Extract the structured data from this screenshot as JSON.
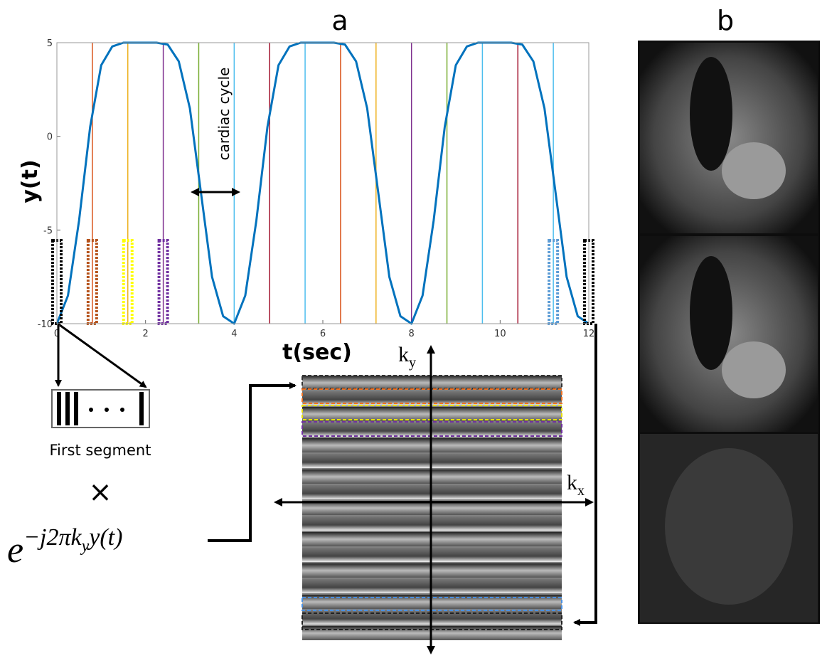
{
  "chart_data": {
    "type": "line",
    "title": "a",
    "xlabel": "t(sec)",
    "ylabel": "y(t)",
    "annotation": "cardiac cycle",
    "x": [
      0,
      0.25,
      0.5,
      0.75,
      1,
      1.25,
      1.5,
      1.75,
      2,
      2.25,
      2.5,
      2.75,
      3,
      3.25,
      3.5,
      3.75,
      4,
      4.25,
      4.5,
      4.75,
      5,
      5.25,
      5.5,
      5.75,
      6,
      6.25,
      6.5,
      6.75,
      7,
      7.25,
      7.5,
      7.75,
      8,
      8.25,
      8.5,
      8.75,
      9,
      9.25,
      9.5,
      9.75,
      10,
      10.25,
      10.5,
      10.75,
      11,
      11.25,
      11.5,
      11.75,
      12
    ],
    "series": [
      {
        "color": "#0072bd",
        "values": [
          -10,
          -8.5,
          -4.5,
          0.5,
          3.8,
          4.8,
          5,
          5,
          5,
          5,
          4.9,
          4,
          1.5,
          -3,
          -7.5,
          -9.6,
          -10,
          -8.5,
          -4.5,
          0.5,
          3.8,
          4.8,
          5,
          5,
          5,
          5,
          4.9,
          4,
          1.5,
          -3,
          -7.5,
          -9.6,
          -10,
          -8.5,
          -4.5,
          0.5,
          3.8,
          4.8,
          5,
          5,
          5,
          5,
          4.9,
          4,
          1.5,
          -3,
          -7.5,
          -9.6,
          -10
        ]
      }
    ],
    "vertical_lines": [
      {
        "x": 0.8,
        "color": "#d95319"
      },
      {
        "x": 1.6,
        "color": "#edb120"
      },
      {
        "x": 2.4,
        "color": "#7e2f8e"
      },
      {
        "x": 3.2,
        "color": "#77ac30"
      },
      {
        "x": 4.0,
        "color": "#4dbeee"
      },
      {
        "x": 4.8,
        "color": "#a2142f"
      },
      {
        "x": 5.6,
        "color": "#4dbeee"
      },
      {
        "x": 6.4,
        "color": "#d95319"
      },
      {
        "x": 7.2,
        "color": "#edb120"
      },
      {
        "x": 8.0,
        "color": "#7e2f8e"
      },
      {
        "x": 8.8,
        "color": "#77ac30"
      },
      {
        "x": 9.6,
        "color": "#4dbeee"
      },
      {
        "x": 10.4,
        "color": "#a2142f"
      },
      {
        "x": 11.2,
        "color": "#4dbeee"
      }
    ],
    "segments": [
      {
        "x": 0,
        "color": "#000000"
      },
      {
        "x": 0.8,
        "color": "#b5521b"
      },
      {
        "x": 1.6,
        "color": "#ffff00"
      },
      {
        "x": 2.4,
        "color": "#7030a0"
      },
      {
        "x": 11.2,
        "color": "#5b9bd5"
      },
      {
        "x": 12,
        "color": "#000000"
      }
    ],
    "xlim": [
      0,
      12
    ],
    "xticks": [
      0,
      2,
      4,
      6,
      8,
      10,
      12
    ],
    "ylim": [
      -10,
      5
    ],
    "yticks": [
      -10,
      -5,
      0,
      5
    ]
  },
  "diagram": {
    "segment_label": "First segment",
    "times": "×",
    "equation": {
      "base": "e",
      "exponent": "−j2πk",
      "subscript": "y",
      "tail": "y(t)"
    },
    "ky_label": {
      "base": "k",
      "sub": "y"
    },
    "kx_label": {
      "base": "k",
      "sub": "x"
    }
  },
  "panel_b": {
    "title": "b"
  }
}
